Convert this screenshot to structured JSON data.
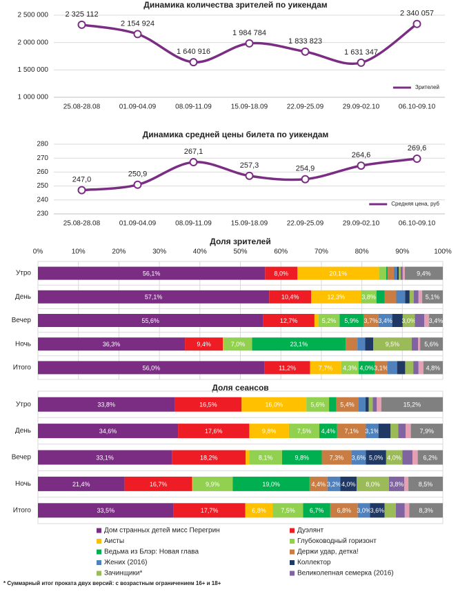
{
  "chart_data": [
    {
      "type": "line",
      "title": "Динамика количества зрителей по уикендам",
      "categories": [
        "25.08-28.08",
        "01.09-04.09",
        "08.09-11.09",
        "15.09-18.09",
        "22.09-25.09",
        "29.09-02.10",
        "06.10-09.10"
      ],
      "series": [
        {
          "name": "Зрителей",
          "color": "#7b2d84",
          "values": [
            2325112,
            2154924,
            1640916,
            1984784,
            1833823,
            1631347,
            2340057
          ],
          "value_labels": [
            "2 325 112",
            "2 154 924",
            "1 640 916",
            "1 984 784",
            "1 833 823",
            "1 631 347",
            "2 340 057"
          ]
        }
      ],
      "ylim": [
        1000000,
        2500000
      ],
      "yticks": [
        {
          "value": 1000000,
          "label": "1 000 000"
        },
        {
          "value": 1500000,
          "label": "1 500 000"
        },
        {
          "value": 2000000,
          "label": "2 000 000"
        },
        {
          "value": 2500000,
          "label": "2 500 000"
        }
      ],
      "grid": true,
      "legend": "lower right"
    },
    {
      "type": "line",
      "title": "Динамика средней цены билета по уикендам",
      "categories": [
        "25.08-28.08",
        "01.09-04.09",
        "08.09-11.09",
        "15.09-18.09",
        "22.09-25.09",
        "29.09-02.10",
        "06.10-09.10"
      ],
      "series": [
        {
          "name": "Средняя цена, руб",
          "color": "#7b2d84",
          "values": [
            247.0,
            250.9,
            267.1,
            257.3,
            254.9,
            264.6,
            269.6
          ],
          "value_labels": [
            "247,0",
            "250,9",
            "267,1",
            "257,3",
            "254,9",
            "264,6",
            "269,6"
          ]
        }
      ],
      "ylim": [
        230,
        280
      ],
      "yticks": [
        230,
        240,
        250,
        260,
        270,
        280
      ],
      "grid": true,
      "legend": "lower right"
    },
    {
      "type": "bar",
      "orientation": "horizontal",
      "stacked": true,
      "title": "Доля зрителей",
      "categories": [
        "Утро",
        "День",
        "Вечер",
        "Ночь",
        "Итого"
      ],
      "xlim": [
        0,
        100
      ],
      "xticks": [
        {
          "value": 0,
          "label": "0%"
        },
        {
          "value": 10,
          "label": "10%"
        },
        {
          "value": 20,
          "label": "20%"
        },
        {
          "value": 30,
          "label": "30%"
        },
        {
          "value": 40,
          "label": "40%"
        },
        {
          "value": 50,
          "label": "50%"
        },
        {
          "value": 60,
          "label": "60%"
        },
        {
          "value": 70,
          "label": "70%"
        },
        {
          "value": 80,
          "label": "80%"
        },
        {
          "value": 90,
          "label": "90%"
        },
        {
          "value": 100,
          "label": "100%"
        }
      ],
      "grid": true,
      "legend": "bottom",
      "series": [
        {
          "name": "Дом странных детей мисс Перегрин",
          "color": "#7b2d84",
          "values": [
            56.1,
            57.1,
            55.6,
            36.3,
            56.0
          ],
          "value_labels": [
            "56,1%",
            "57,1%",
            "55,6%",
            "36,3%",
            "56,0%"
          ]
        },
        {
          "name": "Дуэлянт",
          "color": "#ee1c25",
          "values": [
            8.0,
            10.4,
            12.7,
            9.4,
            11.2
          ],
          "value_labels": [
            "8,0%",
            "10,4%",
            "12,7%",
            "9,4%",
            "11,2%"
          ]
        },
        {
          "name": "Аисты",
          "color": "#ffc000",
          "values": [
            20.1,
            12.3,
            1.0,
            0.2,
            7.7
          ],
          "value_labels": [
            "20,1%",
            "12,3%",
            null,
            null,
            "7,7%"
          ]
        },
        {
          "name": "Глубоководный горизонт",
          "color": "#92d050",
          "values": [
            1.8,
            3.8,
            5.2,
            7.0,
            4.3
          ],
          "value_labels": [
            null,
            "3,8%",
            "5,2%",
            "7,0%",
            "4,3%"
          ]
        },
        {
          "name": "Ведьма из Блэр: Новая глава",
          "color": "#00b050",
          "values": [
            0.4,
            2.0,
            5.9,
            23.1,
            4.0
          ],
          "value_labels": [
            null,
            null,
            "5,9%",
            "23,1%",
            "4,0%"
          ]
        },
        {
          "name": "Держи удар, детка!",
          "color": "#c97d43",
          "values": [
            1.5,
            2.9,
            3.7,
            2.9,
            3.1
          ],
          "value_labels": [
            null,
            null,
            "3,7%",
            null,
            "3,1%"
          ]
        },
        {
          "name": "Жених (2016)",
          "color": "#4f81bd",
          "values": [
            0.8,
            2.2,
            3.4,
            1.9,
            2.4
          ],
          "value_labels": [
            null,
            null,
            "3,4%",
            null,
            null
          ]
        },
        {
          "name": "Коллектор",
          "color": "#1f3864",
          "values": [
            0.4,
            1.1,
            2.6,
            2.0,
            2.0
          ],
          "value_labels": [
            null,
            null,
            null,
            null,
            null
          ]
        },
        {
          "name": "Зачинщики*",
          "color": "#9bbb59",
          "values": [
            0.5,
            1.0,
            3.0,
            9.5,
            2.0
          ],
          "value_labels": [
            null,
            null,
            "3,0%",
            "9,5%",
            null
          ]
        },
        {
          "name": "Великолепная семерка (2016)",
          "color": "#8064a2",
          "values": [
            0.5,
            1.2,
            2.3,
            1.6,
            1.3
          ],
          "value_labels": [
            null,
            null,
            null,
            null,
            null
          ]
        },
        {
          "color": "#e6a0b4",
          "values": [
            0.5,
            0.9,
            1.2,
            0.5,
            1.2
          ],
          "value_labels": [
            null,
            null,
            null,
            null,
            null
          ]
        },
        {
          "color": "#808080",
          "values": [
            9.4,
            5.1,
            3.4,
            5.6,
            4.8
          ],
          "value_labels": [
            "9,4%",
            "5,1%",
            "3,4%",
            "5,6%",
            "4,8%"
          ]
        }
      ]
    },
    {
      "type": "bar",
      "orientation": "horizontal",
      "stacked": true,
      "title": "Доля сеансов",
      "categories": [
        "Утро",
        "День",
        "Вечер",
        "Ночь",
        "Итого"
      ],
      "xlim": [
        0,
        100
      ],
      "series": [
        {
          "color": "#7b2d84",
          "values": [
            33.8,
            34.6,
            33.1,
            21.4,
            33.5
          ],
          "value_labels": [
            "33,8%",
            "34,6%",
            "33,1%",
            "21,4%",
            "33,5%"
          ]
        },
        {
          "color": "#ee1c25",
          "values": [
            16.5,
            17.6,
            18.2,
            16.7,
            17.7
          ],
          "value_labels": [
            "16,5%",
            "17,6%",
            "18,2%",
            "16,7%",
            "17,7%"
          ]
        },
        {
          "color": "#ffc000",
          "values": [
            16.0,
            9.8,
            0.9,
            0.1,
            6.8
          ],
          "value_labels": [
            "16,0%",
            "9,8%",
            null,
            null,
            "6,8%"
          ]
        },
        {
          "color": "#92d050",
          "values": [
            5.6,
            7.5,
            8.1,
            9.9,
            7.5
          ],
          "value_labels": [
            "5,6%",
            "7,5%",
            "8,1%",
            "9,9%",
            "7,5%"
          ]
        },
        {
          "color": "#00b050",
          "values": [
            1.8,
            4.4,
            9.8,
            19.0,
            6.7
          ],
          "value_labels": [
            null,
            "4,4%",
            "9,8%",
            "19,0%",
            "6,7%"
          ]
        },
        {
          "color": "#c97d43",
          "values": [
            5.4,
            7.1,
            7.3,
            4.4,
            6.8
          ],
          "value_labels": [
            "5,4%",
            "7,1%",
            "7,3%",
            "4,4%",
            "6,8%"
          ]
        },
        {
          "color": "#4f81bd",
          "values": [
            1.8,
            3.1,
            3.6,
            3.2,
            3.0
          ],
          "value_labels": [
            null,
            "3,1%",
            "3,6%",
            "3,2%",
            "3,0%"
          ]
        },
        {
          "color": "#1f3864",
          "values": [
            0.8,
            3.0,
            5.0,
            4.0,
            3.6
          ],
          "value_labels": [
            null,
            null,
            "5,0%",
            "4,0%",
            "3,6%"
          ]
        },
        {
          "color": "#9bbb59",
          "values": [
            1.0,
            1.9,
            4.0,
            8.0,
            2.8
          ],
          "value_labels": [
            null,
            null,
            "4,0%",
            "8,0%",
            null
          ]
        },
        {
          "color": "#8064a2",
          "values": [
            1.0,
            1.8,
            2.5,
            3.8,
            2.2
          ],
          "value_labels": [
            null,
            null,
            null,
            "3,8%",
            null
          ]
        },
        {
          "color": "#e6a0b4",
          "values": [
            1.1,
            1.3,
            1.3,
            1.0,
            1.1
          ],
          "value_labels": [
            null,
            null,
            null,
            null,
            null
          ]
        },
        {
          "color": "#808080",
          "values": [
            15.2,
            7.9,
            6.2,
            8.5,
            8.3
          ],
          "value_labels": [
            "15,2%",
            "7,9%",
            "6,2%",
            "8,5%",
            "8,3%"
          ]
        }
      ]
    }
  ],
  "footnote": "* Суммарный итог проката двух версий: с возрастным ограничением 16+ и 18+"
}
